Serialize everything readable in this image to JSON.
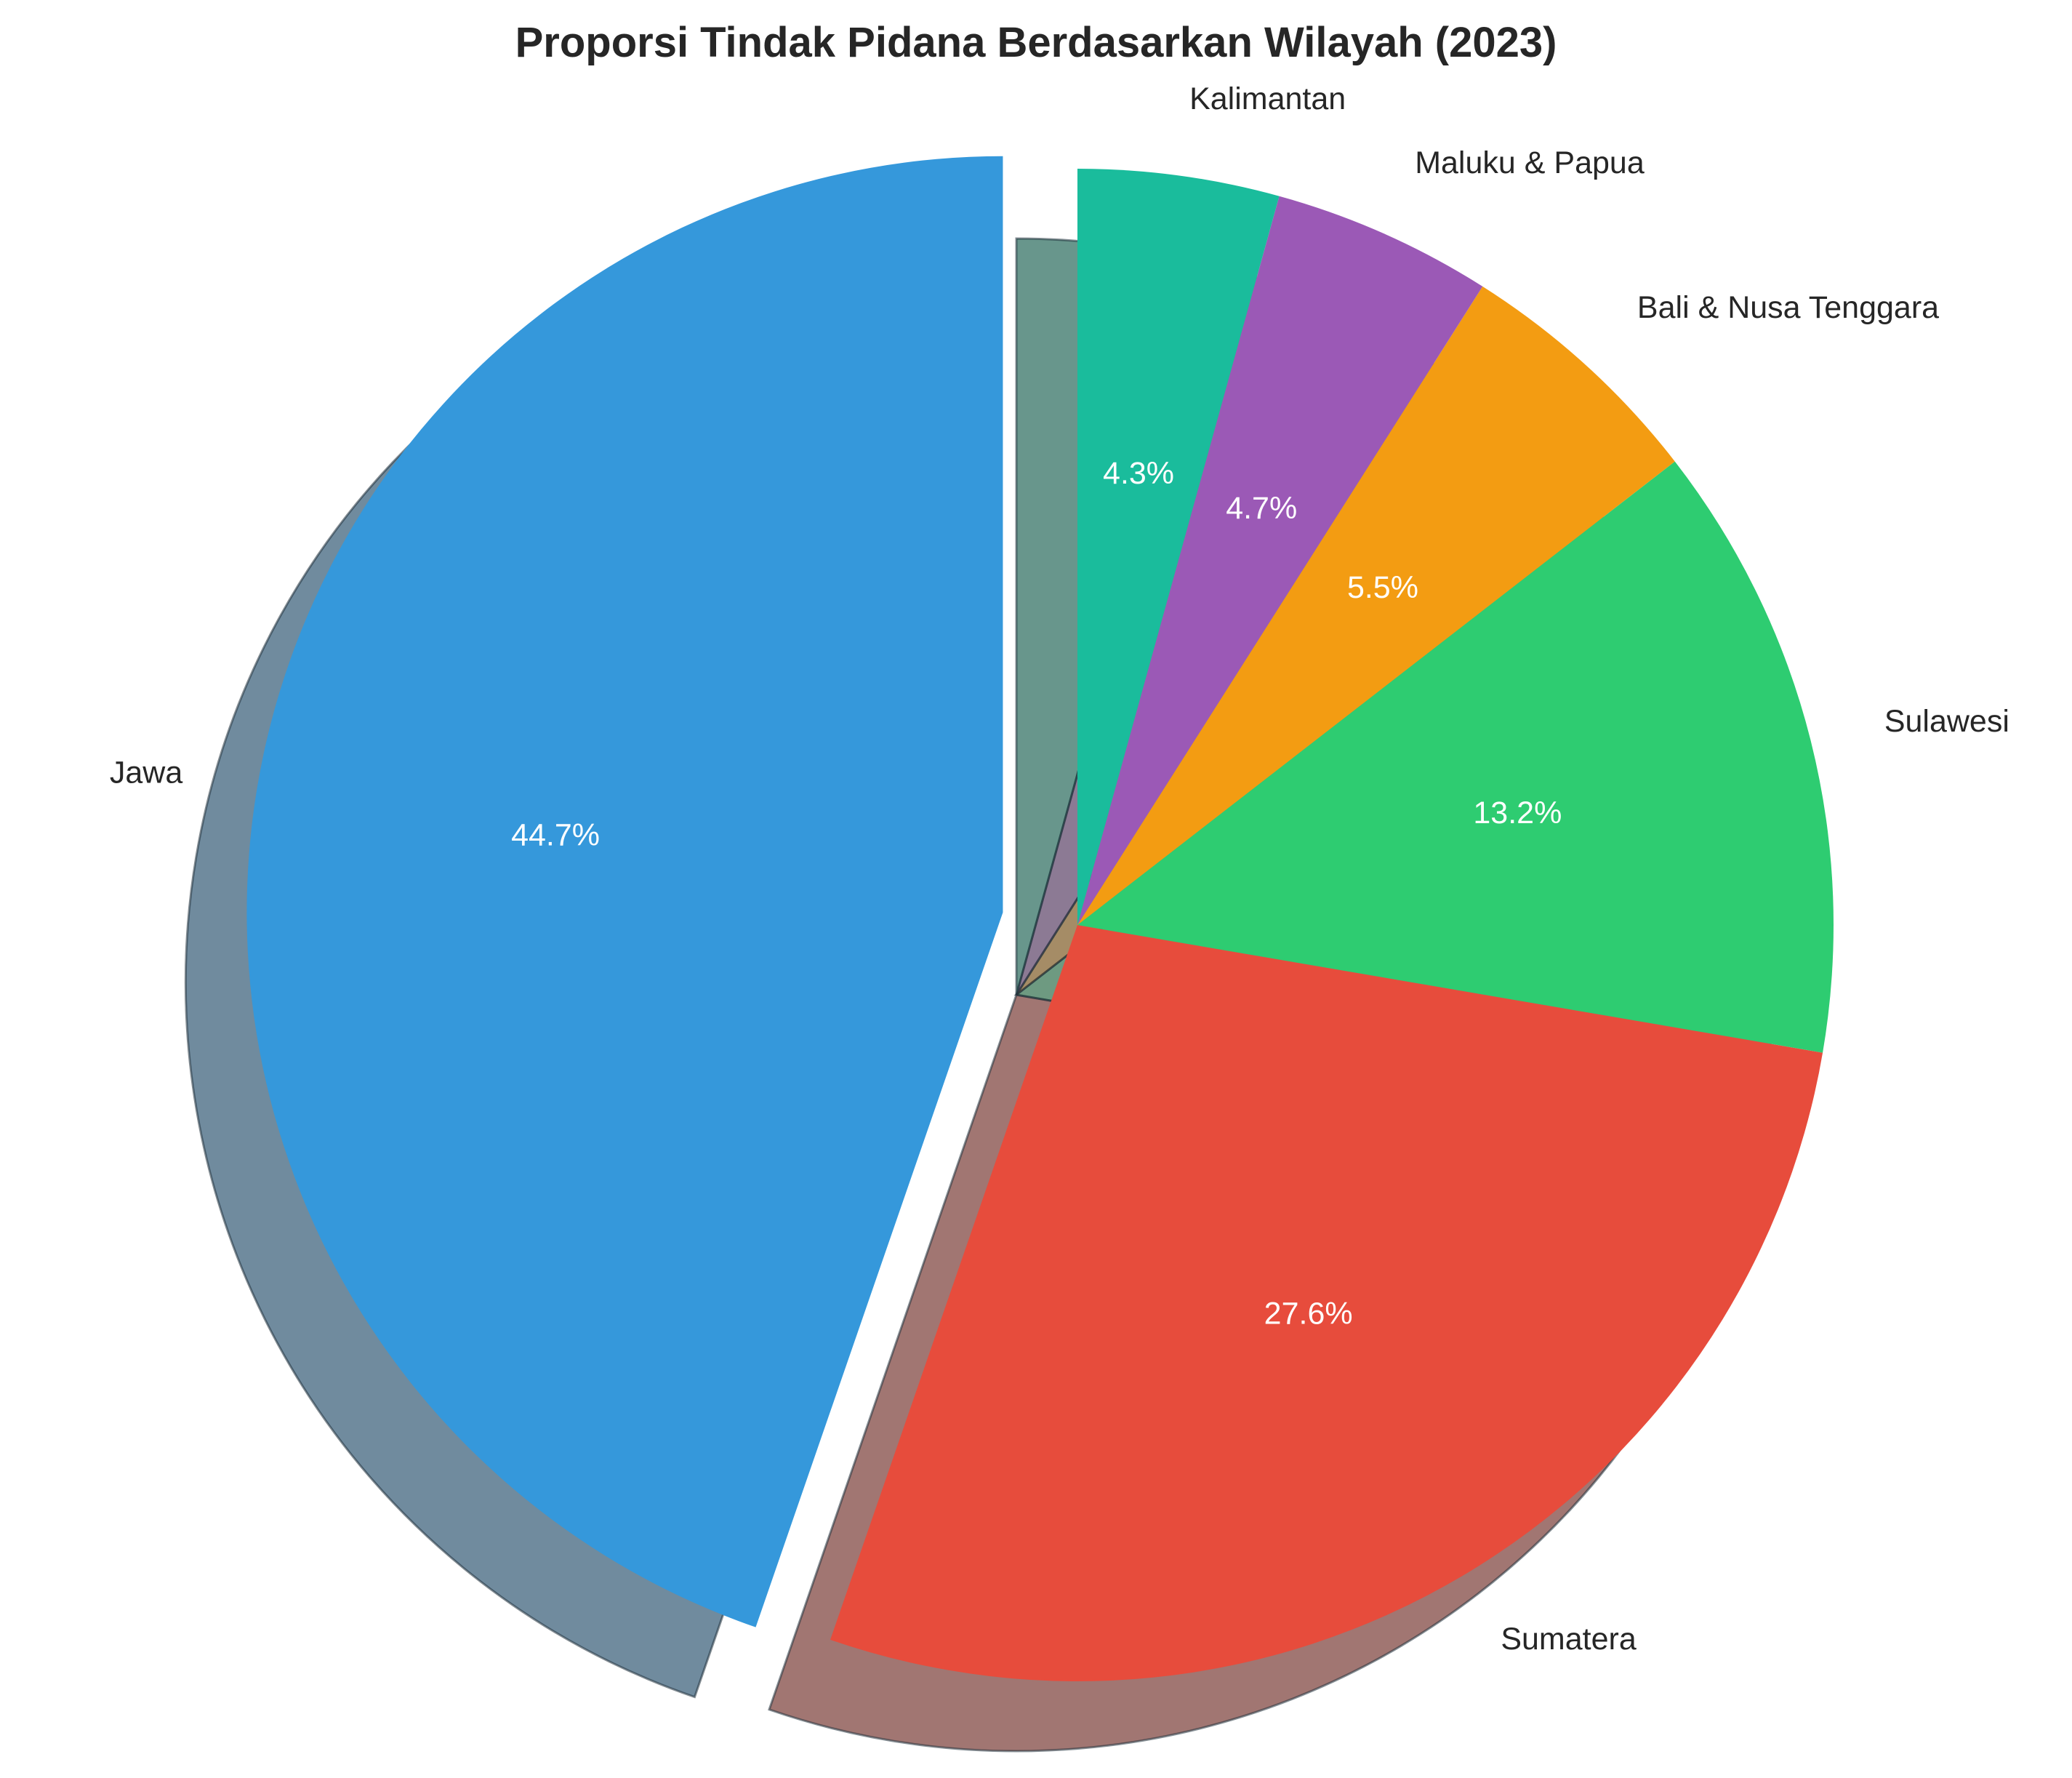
{
  "chart_data": {
    "type": "pie",
    "title": "Proporsi Tindak Pidana Berdasarkan Wilayah (2023)",
    "categories": [
      "Jawa",
      "Sumatera",
      "Sulawesi",
      "Bali & Nusa Tenggara",
      "Maluku & Papua",
      "Kalimantan"
    ],
    "values": [
      44.7,
      27.6,
      13.2,
      5.5,
      4.7,
      4.3
    ],
    "percent_labels": [
      "44.7%",
      "27.6%",
      "13.2%",
      "5.5%",
      "4.7%",
      "4.3%"
    ],
    "colors": [
      "#3598db",
      "#e74c3c",
      "#2ecc71",
      "#f39c12",
      "#9b59b6",
      "#1abc9c"
    ],
    "start_angle_deg": 90,
    "direction": "counterclockwise",
    "exploded": [
      "Jawa"
    ],
    "shadow": true,
    "legend": "none"
  }
}
